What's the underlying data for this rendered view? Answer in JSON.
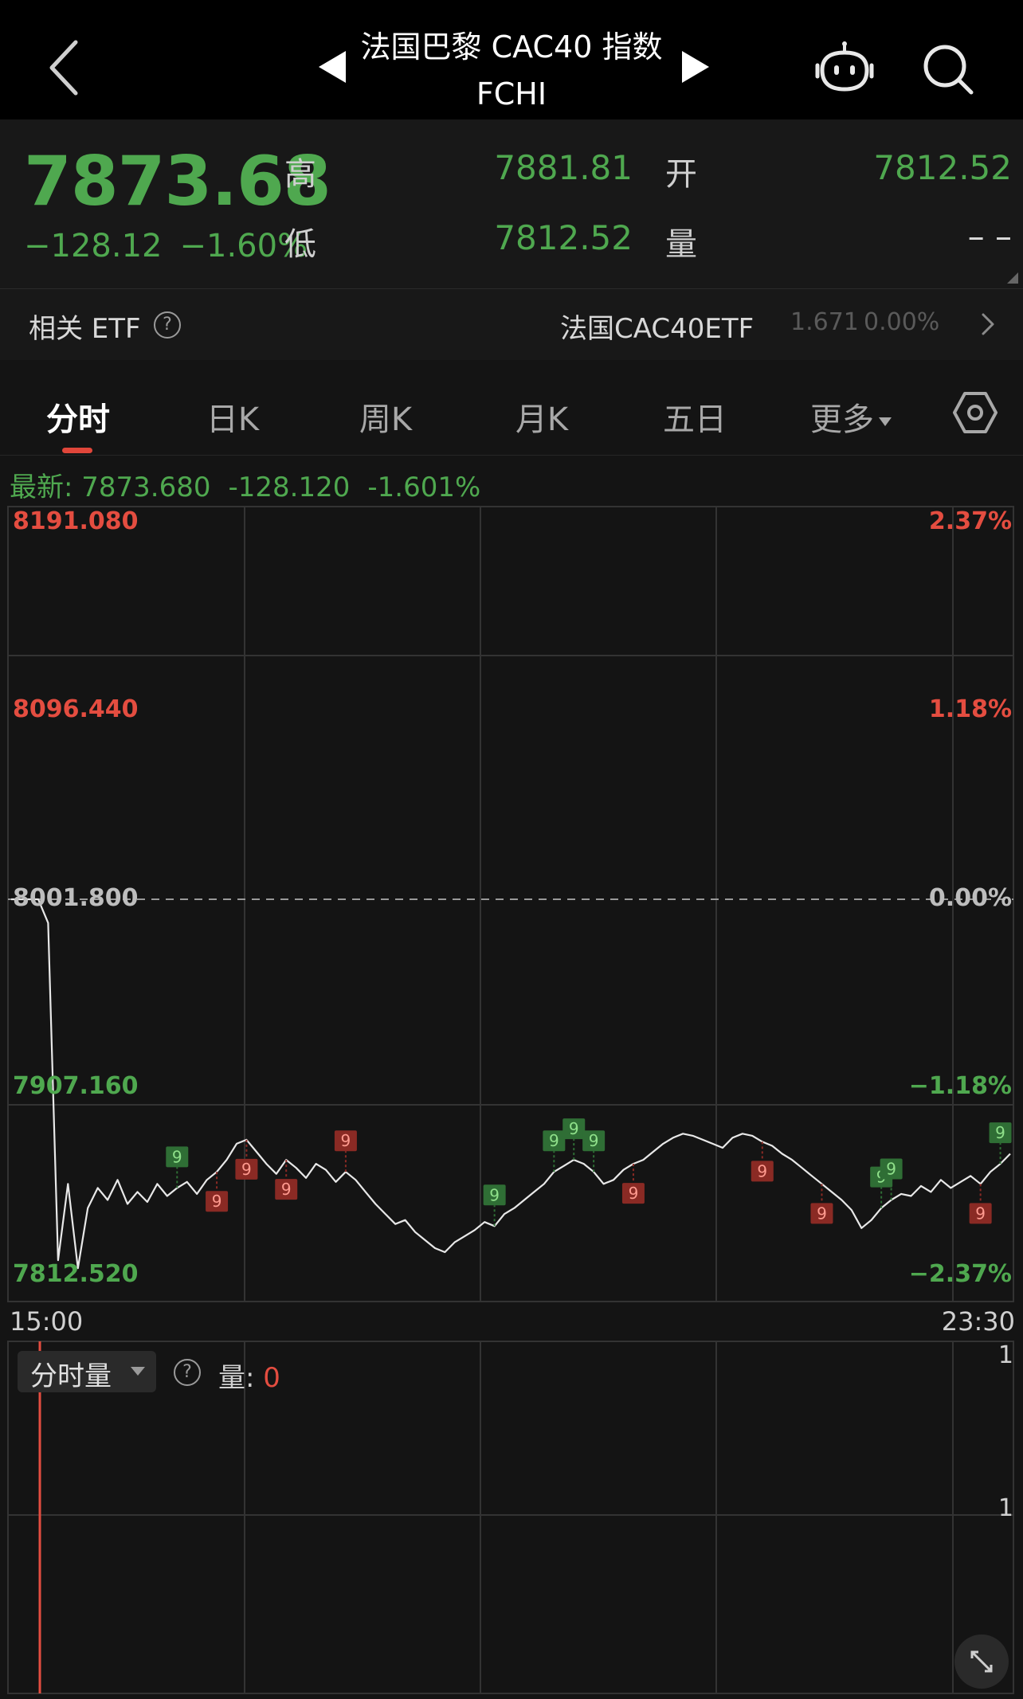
{
  "header": {
    "title": "法国巴黎 CAC40 指数",
    "subtitle": "FCHI"
  },
  "quote": {
    "price": "7873.68",
    "change": "−128.12",
    "change_pct": "−1.60%",
    "high_label": "高",
    "high": "7881.81",
    "low_label": "低",
    "low": "7812.52",
    "open_label": "开",
    "open": "7812.52",
    "volume_label": "量",
    "volume": "– –"
  },
  "etf": {
    "label": "相关 ETF",
    "name": "法国CAC40ETF",
    "price": "1.671",
    "pct": "0.00%"
  },
  "tabs": {
    "items": [
      "分时",
      "日K",
      "周K",
      "月K",
      "五日",
      "更多"
    ],
    "active": 0
  },
  "latest": {
    "label": "最新: 7873.680",
    "change": "-128.120",
    "pct": "-1.601%"
  },
  "chart_data": {
    "type": "line",
    "x_range": [
      "15:00",
      "23:30"
    ],
    "y_ticks_left": [
      "8191.080",
      "8096.440",
      "8001.800",
      "7907.160",
      "7812.520"
    ],
    "y_ticks_right": [
      "2.37%",
      "1.18%",
      "0.00%",
      "−1.18%",
      "−2.37%"
    ],
    "ylim": [
      7812.52,
      8191.08
    ],
    "prev_close": 8001.8,
    "grid": true,
    "x_step_min": 5,
    "values": [
      8001.8,
      8001.8,
      7990,
      7822,
      7860,
      7818,
      7848,
      7858,
      7852,
      7862,
      7850,
      7856,
      7851,
      7860,
      7854,
      7858,
      7861,
      7855,
      7862,
      7866,
      7872,
      7880,
      7882,
      7876,
      7870,
      7865,
      7872,
      7868,
      7863,
      7870,
      7867,
      7861,
      7866,
      7862,
      7856,
      7850,
      7845,
      7840,
      7842,
      7836,
      7832,
      7828,
      7826,
      7831,
      7834,
      7837,
      7841,
      7839,
      7845,
      7848,
      7852,
      7856,
      7860,
      7866,
      7869,
      7872,
      7870,
      7866,
      7860,
      7862,
      7867,
      7870,
      7872,
      7876,
      7880,
      7883,
      7885,
      7884,
      7882,
      7880,
      7878,
      7883,
      7885,
      7884,
      7881,
      7879,
      7875,
      7872,
      7868,
      7864,
      7860,
      7856,
      7852,
      7847,
      7838,
      7842,
      7848,
      7852,
      7855,
      7854,
      7859,
      7856,
      7862,
      7858,
      7861,
      7864,
      7860,
      7866,
      7870,
      7875
    ],
    "nine_markers": [
      {
        "i": 20,
        "color": "green",
        "dir": "up"
      },
      {
        "i": 26,
        "color": "red",
        "dir": "down"
      },
      {
        "i": 30,
        "color": "red",
        "dir": "down"
      },
      {
        "i": 35,
        "color": "red",
        "dir": "down"
      },
      {
        "i": 43,
        "color": "red",
        "dir": "up"
      },
      {
        "i": 63,
        "color": "green",
        "dir": "up"
      },
      {
        "i": 72,
        "color": "green",
        "dir": "up"
      },
      {
        "i": 75,
        "color": "green",
        "dir": "up"
      },
      {
        "i": 77,
        "color": "green",
        "dir": "up"
      },
      {
        "i": 82,
        "color": "red",
        "dir": "down"
      },
      {
        "i": 100,
        "color": "red",
        "dir": "down"
      },
      {
        "i": 108,
        "color": "red",
        "dir": "down"
      },
      {
        "i": 116,
        "color": "green",
        "dir": "up"
      },
      {
        "i": 118,
        "color": "green",
        "dir": "up"
      },
      {
        "i": 130,
        "color": "red",
        "dir": "down"
      },
      {
        "i": 132,
        "color": "green",
        "dir": "up"
      }
    ],
    "marker_text": "9"
  },
  "volume": {
    "selector": "分时量",
    "label": "量: ",
    "value": "0",
    "y_ticks": [
      "1",
      "1"
    ]
  },
  "colors": {
    "up": "#e44d40",
    "down": "#4fa84f",
    "line": "#e8e8e8"
  },
  "icons": {
    "back": "chevron-left-icon",
    "prev": "triangle-left-icon",
    "next": "triangle-right-icon",
    "robot": "robot-icon",
    "search": "search-icon",
    "settings": "hexagon-settings-icon",
    "fullscreen": "fullscreen-icon"
  }
}
